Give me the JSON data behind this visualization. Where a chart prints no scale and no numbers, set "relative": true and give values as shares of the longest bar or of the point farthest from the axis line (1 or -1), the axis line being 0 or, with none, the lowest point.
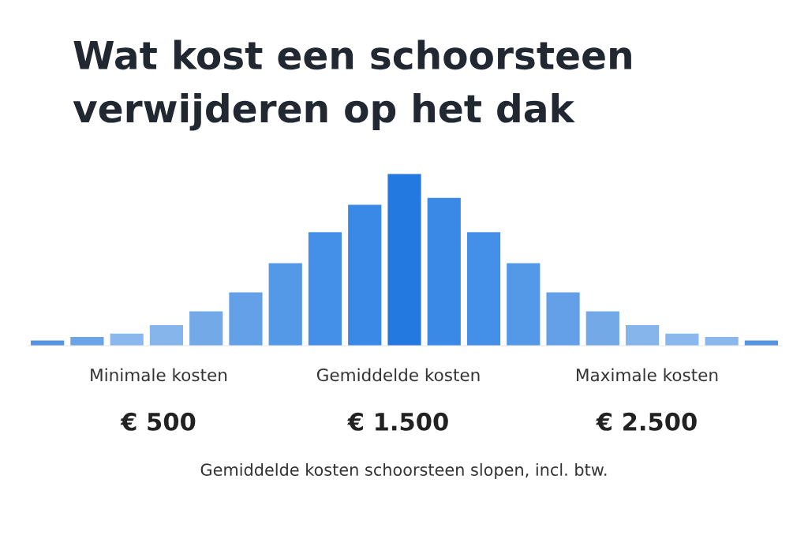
{
  "chart_data": {
    "type": "bar",
    "title": "Wat kost een schoorsteen\nverwijderen op het dak",
    "categories": [
      null,
      null,
      null,
      null,
      null,
      null,
      null,
      null,
      null,
      null,
      null,
      null,
      null,
      null,
      null,
      null,
      null,
      null,
      null
    ],
    "values": [
      0.03,
      0.05,
      0.07,
      0.12,
      0.2,
      0.31,
      0.48,
      0.66,
      0.82,
      1,
      0.86,
      0.66,
      0.48,
      0.31,
      0.2,
      0.12,
      0.07,
      0.05,
      0.03
    ],
    "colors": [
      "#5393e0",
      "#6aa3e6",
      "#8ab8ee",
      "#86b5ec",
      "#74a9e8",
      "#64a0e8",
      "#5399e8",
      "#4490e8",
      "#3a89e6",
      "#2479e0",
      "#3a89e6",
      "#4490e8",
      "#5399e8",
      "#64a0e8",
      "#74a9e8",
      "#86b5ec",
      "#8ab8ee",
      "#8ab8ee",
      "#5393e0"
    ],
    "relative": true,
    "grid": false,
    "legend": false,
    "annotations": [
      "Minimale kosten",
      "Gemiddelde kosten",
      "Maximale kosten",
      "€ 500",
      "€ 1.500",
      "€ 2.500",
      "Gemiddelde kosten schoorsteen slopen, incl. btw."
    ]
  }
}
